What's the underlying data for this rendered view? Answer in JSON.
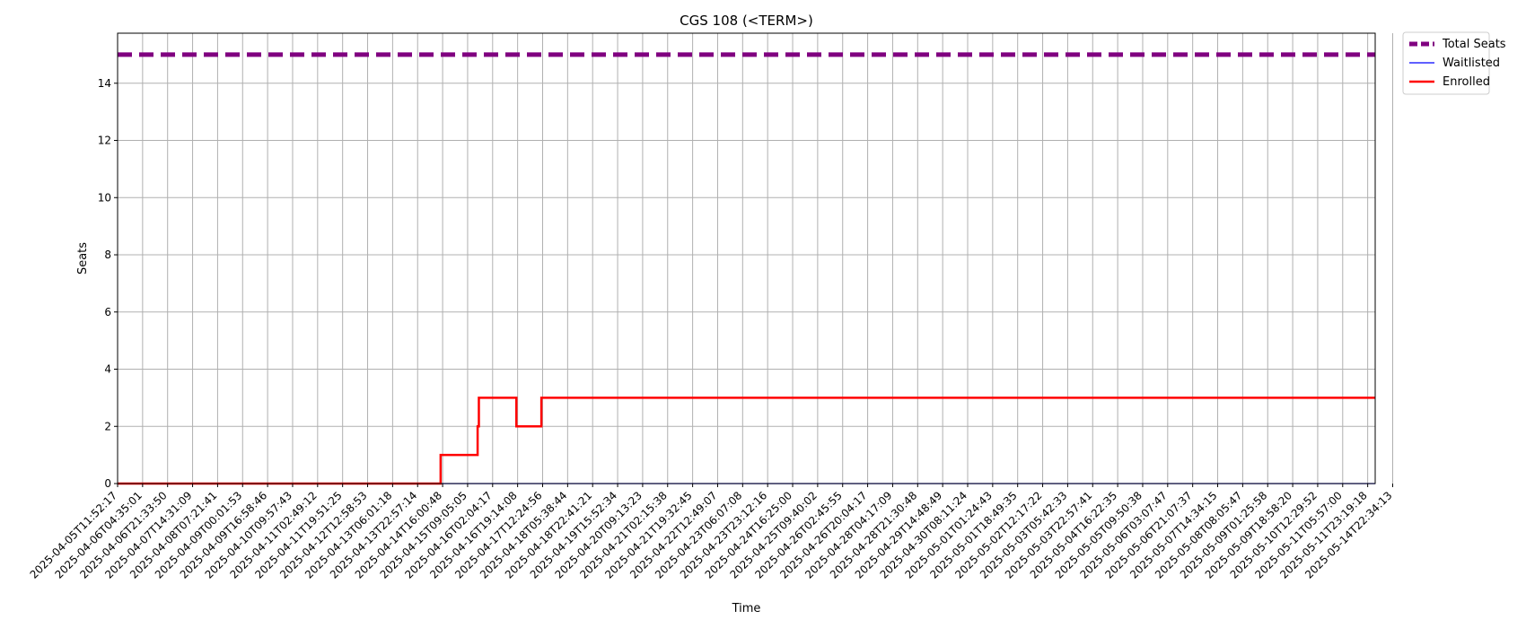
{
  "chart_data": {
    "type": "line",
    "title": "CGS 108 (<TERM>)",
    "xlabel": "Time",
    "ylabel": "Seats",
    "ylim": [
      0,
      15.75
    ],
    "yticks": [
      0,
      2,
      4,
      6,
      8,
      10,
      12,
      14
    ],
    "grid": true,
    "legend_position": "outside-top-right",
    "x_ticks": [
      "2025-04-05T11:52:17",
      "2025-04-06T04:35:01",
      "2025-04-06T21:33:50",
      "2025-04-07T14:31:09",
      "2025-04-08T07:21:41",
      "2025-04-09T00:01:53",
      "2025-04-09T16:58:46",
      "2025-04-10T09:57:43",
      "2025-04-11T02:49:12",
      "2025-04-11T19:51:25",
      "2025-04-12T12:58:53",
      "2025-04-13T06:01:18",
      "2025-04-13T22:57:14",
      "2025-04-14T16:00:48",
      "2025-04-15T09:05:05",
      "2025-04-16T02:04:17",
      "2025-04-16T19:14:08",
      "2025-04-17T12:24:56",
      "2025-04-18T05:38:44",
      "2025-04-18T22:41:21",
      "2025-04-19T15:52:34",
      "2025-04-20T09:13:23",
      "2025-04-21T02:15:38",
      "2025-04-21T19:32:45",
      "2025-04-22T12:49:07",
      "2025-04-23T06:07:08",
      "2025-04-23T23:12:16",
      "2025-04-24T16:25:00",
      "2025-04-25T09:40:02",
      "2025-04-26T02:45:55",
      "2025-04-26T20:04:17",
      "2025-04-28T04:17:09",
      "2025-04-28T21:30:48",
      "2025-04-29T14:48:49",
      "2025-04-30T08:11:24",
      "2025-05-01T01:24:43",
      "2025-05-01T18:49:35",
      "2025-05-02T12:17:22",
      "2025-05-03T05:42:33",
      "2025-05-03T22:57:41",
      "2025-05-04T16:22:35",
      "2025-05-05T09:50:38",
      "2025-05-06T03:07:47",
      "2025-05-06T21:07:37",
      "2025-05-07T14:34:15",
      "2025-05-08T08:05:47",
      "2025-05-09T01:25:58",
      "2025-05-09T18:58:20",
      "2025-05-10T12:29:52",
      "2025-05-11T05:57:00",
      "2025-05-11T23:19:18",
      "2025-05-14T22:34:13"
    ],
    "series": [
      {
        "name": "Total Seats",
        "color": "#800080",
        "style": "dashed",
        "values": [
          [
            0,
            15
          ],
          [
            50.3,
            15
          ]
        ]
      },
      {
        "name": "Waitlisted",
        "color": "#0000ff",
        "style": "solid",
        "values": [
          [
            0,
            0
          ],
          [
            50.3,
            0
          ]
        ]
      },
      {
        "name": "Enrolled",
        "color": "#ff0000",
        "style": "step",
        "values": [
          [
            0,
            0
          ],
          [
            12.92,
            0
          ],
          [
            12.92,
            1
          ],
          [
            14.4,
            1
          ],
          [
            14.4,
            2
          ],
          [
            14.45,
            2
          ],
          [
            14.45,
            3
          ],
          [
            15.95,
            3
          ],
          [
            15.95,
            2
          ],
          [
            16.95,
            2
          ],
          [
            16.95,
            3
          ],
          [
            50.3,
            3
          ]
        ]
      }
    ]
  }
}
